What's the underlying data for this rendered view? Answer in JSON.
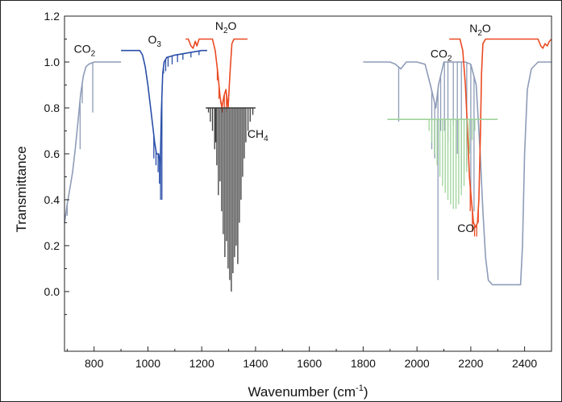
{
  "chart_data": {
    "type": "line",
    "title": "",
    "xlabel": "Wavenumber (cm-1)",
    "xlabel_parts": {
      "main": "Wavenumber (cm",
      "sup": "-1",
      "close": ")"
    },
    "ylabel": "Transmittance",
    "xlim": [
      690,
      2500
    ],
    "ylim": [
      -0.26,
      1.2
    ],
    "xticks": [
      800,
      1000,
      1200,
      1400,
      1600,
      1800,
      2000,
      2200,
      2400
    ],
    "yticks": [
      0.0,
      0.2,
      0.4,
      0.6,
      0.8,
      1.0,
      1.2
    ],
    "ytick_labels": [
      "0.0",
      "0.2",
      "0.4",
      "0.6",
      "0.8",
      "1.0",
      "1.2"
    ],
    "grid": false,
    "legend": "none",
    "series": [
      {
        "species": "CO2",
        "color": "#8e9cb8",
        "segments": [
          [
            [
              690,
              0.3
            ],
            [
              700,
              0.38
            ],
            [
              710,
              0.45
            ],
            [
              720,
              0.52
            ],
            [
              730,
              0.62
            ],
            [
              740,
              0.74
            ],
            [
              750,
              0.86
            ],
            [
              760,
              0.94
            ],
            [
              770,
              0.98
            ],
            [
              780,
              0.99
            ],
            [
              800,
              1.0
            ],
            [
              900,
              1.0
            ]
          ],
          [
            [
              1800,
              1.0
            ],
            [
              1900,
              1.0
            ],
            [
              1920,
              0.99
            ],
            [
              1940,
              0.97
            ],
            [
              1960,
              1.0
            ],
            [
              2000,
              1.0
            ],
            [
              2030,
              0.99
            ],
            [
              2050,
              0.9
            ],
            [
              2070,
              0.8
            ],
            [
              2080,
              0.9
            ],
            [
              2100,
              1.0
            ],
            [
              2180,
              1.0
            ],
            [
              2200,
              0.99
            ],
            [
              2220,
              0.9
            ],
            [
              2235,
              0.6
            ],
            [
              2245,
              0.35
            ],
            [
              2255,
              0.15
            ],
            [
              2265,
              0.05
            ],
            [
              2280,
              0.03
            ],
            [
              2320,
              0.03
            ],
            [
              2360,
              0.03
            ],
            [
              2385,
              0.03
            ],
            [
              2392,
              0.2
            ],
            [
              2400,
              0.6
            ],
            [
              2410,
              0.88
            ],
            [
              2425,
              0.97
            ],
            [
              2450,
              1.0
            ],
            [
              2500,
              1.0
            ]
          ]
        ],
        "lines": [
          [
            700,
            0.33
          ],
          [
            712,
            0.5
          ],
          [
            724,
            0.57
          ],
          [
            736,
            0.7
          ],
          [
            748,
            0.62
          ],
          [
            756,
            0.82
          ],
          [
            795,
            0.78
          ],
          [
            1932,
            0.74
          ],
          [
            2055,
            0.62
          ],
          [
            2066,
            0.58
          ],
          [
            2078,
            0.05
          ],
          [
            2088,
            0.7
          ],
          [
            2102,
            0.7
          ],
          [
            2115,
            0.65
          ],
          [
            2135,
            0.72
          ],
          [
            2150,
            0.6
          ],
          [
            2165,
            0.45
          ],
          [
            2185,
            0.55
          ],
          [
            2200,
            0.4
          ],
          [
            2212,
            0.35
          ]
        ]
      },
      {
        "species": "O3",
        "color": "#2a4ea8",
        "segments": [
          [
            [
              900,
              1.05
            ],
            [
              970,
              1.05
            ],
            [
              980,
              1.03
            ],
            [
              990,
              0.98
            ],
            [
              1000,
              0.9
            ],
            [
              1010,
              0.8
            ],
            [
              1018,
              0.72
            ],
            [
              1025,
              0.65
            ],
            [
              1032,
              0.6
            ],
            [
              1040,
              0.6
            ],
            [
              1046,
              0.55
            ],
            [
              1050,
              0.78
            ],
            [
              1055,
              0.95
            ],
            [
              1060,
              1.0
            ],
            [
              1070,
              1.02
            ],
            [
              1100,
              1.03
            ],
            [
              1150,
              1.04
            ],
            [
              1200,
              1.05
            ],
            [
              1220,
              1.05
            ]
          ]
        ],
        "lines": [
          [
            1022,
            0.58
          ],
          [
            1030,
            0.55
          ],
          [
            1038,
            0.52
          ],
          [
            1043,
            0.47
          ],
          [
            1047,
            0.4
          ],
          [
            1052,
            0.4
          ],
          [
            1058,
            0.95
          ],
          [
            1066,
            0.96
          ],
          [
            1075,
            0.98
          ],
          [
            1090,
            0.99
          ],
          [
            1110,
            1.0
          ],
          [
            1130,
            1.01
          ],
          [
            1160,
            1.02
          ],
          [
            1190,
            1.03
          ]
        ]
      },
      {
        "species": "N2O",
        "color": "#ea4a22",
        "segments": [
          [
            [
              1140,
              1.1
            ],
            [
              1150,
              1.1
            ],
            [
              1160,
              1.07
            ],
            [
              1168,
              1.06
            ],
            [
              1176,
              1.09
            ],
            [
              1182,
              1.07
            ],
            [
              1190,
              1.1
            ],
            [
              1240,
              1.1
            ],
            [
              1250,
              1.05
            ],
            [
              1260,
              0.95
            ],
            [
              1268,
              0.85
            ],
            [
              1275,
              0.8
            ],
            [
              1282,
              0.85
            ],
            [
              1290,
              0.88
            ],
            [
              1298,
              0.8
            ],
            [
              1305,
              0.95
            ],
            [
              1312,
              1.08
            ],
            [
              1320,
              1.1
            ],
            [
              1370,
              1.1
            ]
          ],
          [
            [
              2120,
              1.1
            ],
            [
              2160,
              1.1
            ],
            [
              2170,
              1.05
            ],
            [
              2180,
              0.9
            ],
            [
              2188,
              0.7
            ],
            [
              2195,
              0.5
            ],
            [
              2202,
              0.4
            ],
            [
              2210,
              0.3
            ],
            [
              2218,
              0.28
            ],
            [
              2225,
              0.3
            ],
            [
              2230,
              0.4
            ],
            [
              2236,
              0.7
            ],
            [
              2240,
              0.95
            ],
            [
              2245,
              1.08
            ],
            [
              2255,
              1.1
            ],
            [
              2450,
              1.1
            ],
            [
              2460,
              1.07
            ],
            [
              2468,
              1.06
            ],
            [
              2476,
              1.08
            ],
            [
              2484,
              1.07
            ],
            [
              2492,
              1.09
            ],
            [
              2500,
              1.1
            ]
          ]
        ],
        "lines": [
          [
            1258,
            0.92
          ],
          [
            1264,
            0.84
          ],
          [
            1270,
            0.82
          ],
          [
            1276,
            0.78
          ],
          [
            1284,
            0.8
          ],
          [
            1292,
            0.78
          ],
          [
            1300,
            0.86
          ],
          [
            2198,
            0.35
          ],
          [
            2206,
            0.26
          ],
          [
            2214,
            0.24
          ],
          [
            2222,
            0.24
          ],
          [
            2228,
            0.3
          ]
        ]
      },
      {
        "species": "CH4",
        "color": "#3a3a3a",
        "segments": [
          [
            [
              1215,
              0.8
            ],
            [
              1400,
              0.8
            ]
          ]
        ],
        "lines": [
          [
            1225,
            0.78
          ],
          [
            1232,
            0.74
          ],
          [
            1240,
            0.7
          ],
          [
            1248,
            0.62
          ],
          [
            1252,
            0.65
          ],
          [
            1256,
            0.55
          ],
          [
            1262,
            0.42
          ],
          [
            1268,
            0.48
          ],
          [
            1274,
            0.35
          ],
          [
            1280,
            0.25
          ],
          [
            1286,
            0.15
          ],
          [
            1292,
            0.22
          ],
          [
            1298,
            0.1
          ],
          [
            1304,
            0.05
          ],
          [
            1310,
            0.0
          ],
          [
            1316,
            0.08
          ],
          [
            1322,
            0.15
          ],
          [
            1328,
            0.2
          ],
          [
            1334,
            0.12
          ],
          [
            1340,
            0.3
          ],
          [
            1346,
            0.4
          ],
          [
            1352,
            0.5
          ],
          [
            1358,
            0.58
          ],
          [
            1364,
            0.65
          ],
          [
            1372,
            0.7
          ],
          [
            1380,
            0.74
          ],
          [
            1390,
            0.77
          ]
        ]
      },
      {
        "species": "CO",
        "color": "#9ed49a",
        "segments": [
          [
            [
              1890,
              0.75
            ],
            [
              2300,
              0.75
            ]
          ]
        ],
        "lines": [
          [
            2045,
            0.7
          ],
          [
            2055,
            0.65
          ],
          [
            2065,
            0.6
          ],
          [
            2075,
            0.55
          ],
          [
            2085,
            0.5
          ],
          [
            2095,
            0.46
          ],
          [
            2105,
            0.43
          ],
          [
            2115,
            0.4
          ],
          [
            2125,
            0.38
          ],
          [
            2135,
            0.36
          ],
          [
            2145,
            0.36
          ],
          [
            2155,
            0.38
          ],
          [
            2165,
            0.42
          ],
          [
            2175,
            0.46
          ],
          [
            2185,
            0.52
          ],
          [
            2195,
            0.6
          ],
          [
            2205,
            0.66
          ],
          [
            2215,
            0.7
          ]
        ]
      }
    ],
    "annotations": [
      {
        "id": "co2-left",
        "main": "CO",
        "sub": "2",
        "x": 725,
        "y": 1.04
      },
      {
        "id": "o3",
        "main": "O",
        "sub": "3",
        "x": 1000,
        "y": 1.08
      },
      {
        "id": "n2o-left",
        "main": "N",
        "sub": "2",
        "tail": "O",
        "x": 1250,
        "y": 1.14
      },
      {
        "id": "ch4",
        "main": "CH",
        "sub": "4",
        "x": 1370,
        "y": 0.67
      },
      {
        "id": "co2-right",
        "main": "CO",
        "sub": "2",
        "x": 2050,
        "y": 1.02
      },
      {
        "id": "n2o-right",
        "main": "N",
        "sub": "2",
        "tail": "O",
        "x": 2195,
        "y": 1.13
      },
      {
        "id": "co",
        "main": "CO",
        "sub": "",
        "x": 2150,
        "y": 0.26
      }
    ]
  }
}
